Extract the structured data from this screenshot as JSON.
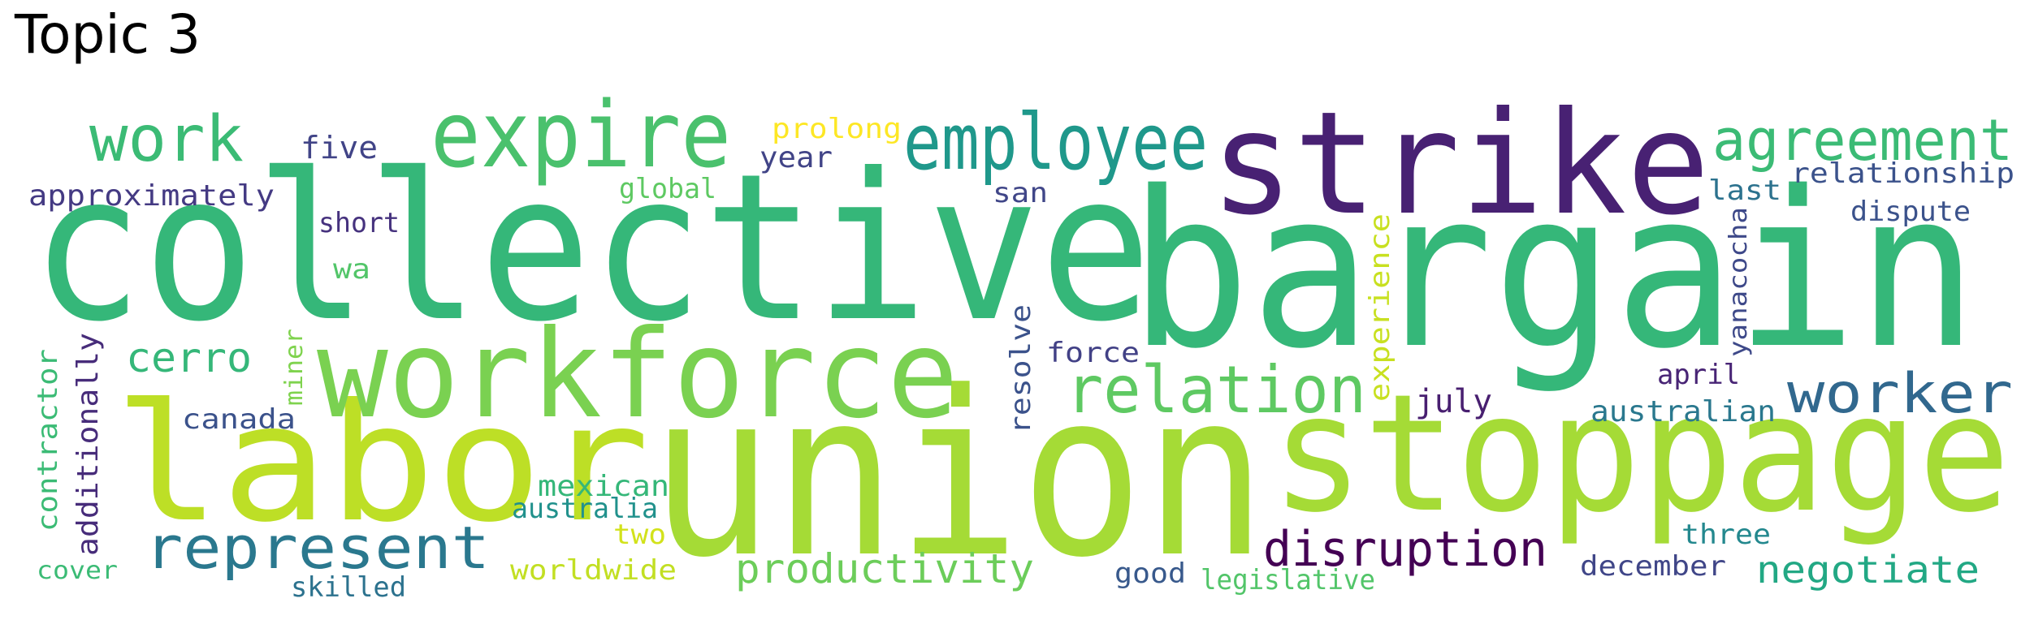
{
  "title": "Topic 3",
  "words": [
    {
      "text": "collective",
      "color": "#35b779"
    },
    {
      "text": "bargain",
      "color": "#35b779"
    },
    {
      "text": "union",
      "color": "#a5db36"
    },
    {
      "text": "stoppage",
      "color": "#a5db36"
    },
    {
      "text": "labor",
      "color": "#bddf26"
    },
    {
      "text": "strike",
      "color": "#482173"
    },
    {
      "text": "workforce",
      "color": "#7ad151"
    },
    {
      "text": "expire",
      "color": "#4ac16d"
    },
    {
      "text": "employee",
      "color": "#1f988b"
    },
    {
      "text": "agreement",
      "color": "#3bbb75"
    },
    {
      "text": "work",
      "color": "#3bbb75"
    },
    {
      "text": "relation",
      "color": "#5ec962"
    },
    {
      "text": "represent",
      "color": "#2a788e"
    },
    {
      "text": "worker",
      "color": "#31688e"
    },
    {
      "text": "disruption",
      "color": "#440154"
    },
    {
      "text": "productivity",
      "color": "#6ccd5a"
    },
    {
      "text": "negotiate",
      "color": "#22a884"
    },
    {
      "text": "cerro",
      "color": "#35b779"
    },
    {
      "text": "prolong",
      "color": "#fde725"
    },
    {
      "text": "five",
      "color": "#414487"
    },
    {
      "text": "year",
      "color": "#414487"
    },
    {
      "text": "approximately",
      "color": "#443a83"
    },
    {
      "text": "global",
      "color": "#5ec962"
    },
    {
      "text": "short",
      "color": "#46327e"
    },
    {
      "text": "san",
      "color": "#404688"
    },
    {
      "text": "relationship",
      "color": "#3b528b"
    },
    {
      "text": "last",
      "color": "#2c728e"
    },
    {
      "text": "dispute",
      "color": "#3b528b"
    },
    {
      "text": "wa",
      "color": "#52c569"
    },
    {
      "text": "experience",
      "color": "#c8e020"
    },
    {
      "text": "yanacocha",
      "color": "#3e4989"
    },
    {
      "text": "force",
      "color": "#424186"
    },
    {
      "text": "resolve",
      "color": "#3b528b"
    },
    {
      "text": "miner",
      "color": "#7fd34e"
    },
    {
      "text": "canada",
      "color": "#3b528b"
    },
    {
      "text": "contractor",
      "color": "#3bbb75"
    },
    {
      "text": "additionally",
      "color": "#472c7a"
    },
    {
      "text": "july",
      "color": "#481f70"
    },
    {
      "text": "april",
      "color": "#482475"
    },
    {
      "text": "australian",
      "color": "#2a788e"
    },
    {
      "text": "mexican",
      "color": "#35b779"
    },
    {
      "text": "australia",
      "color": "#21918c"
    },
    {
      "text": "two",
      "color": "#d2e21b"
    },
    {
      "text": "three",
      "color": "#23888e"
    },
    {
      "text": "worldwide",
      "color": "#c2df23"
    },
    {
      "text": "good",
      "color": "#38598c"
    },
    {
      "text": "legislative",
      "color": "#52c569"
    },
    {
      "text": "december",
      "color": "#404688"
    },
    {
      "text": "cover",
      "color": "#3bbb75"
    },
    {
      "text": "skilled",
      "color": "#2c728e"
    }
  ]
}
